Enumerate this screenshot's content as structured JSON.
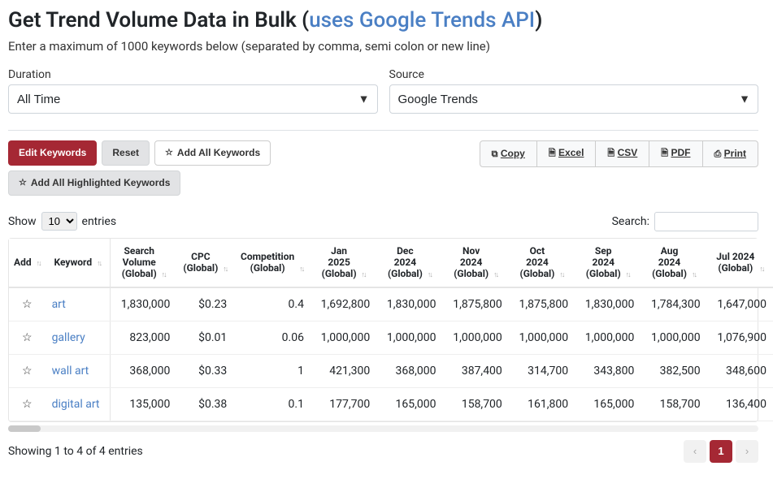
{
  "header": {
    "title_prefix": "Get Trend Volume Data in Bulk ",
    "title_link_text": "uses Google Trends API",
    "subtitle": "Enter a maximum of 1000 keywords below (separated by comma, semi colon or new line)"
  },
  "form": {
    "duration_label": "Duration",
    "duration_value": "All Time",
    "source_label": "Source",
    "source_value": "Google Trends"
  },
  "toolbar": {
    "edit": "Edit Keywords",
    "reset": "Reset",
    "add_all": "Add All Keywords",
    "add_highlighted": "Add All Highlighted Keywords",
    "export": {
      "copy": "Copy",
      "excel": "Excel",
      "csv": "CSV",
      "pdf": "PDF",
      "print": "Print"
    }
  },
  "controls": {
    "show": "Show",
    "entries": "entries",
    "entries_value": "10",
    "search_label": "Search:",
    "search_value": ""
  },
  "table": {
    "columns": [
      "Add",
      "Keyword",
      "Search Volume (Global)",
      "CPC (Global)",
      "Competition (Global)",
      "Jan 2025 (Global)",
      "Dec 2024 (Global)",
      "Nov 2024 (Global)",
      "Oct 2024 (Global)",
      "Sep 2024 (Global)",
      "Aug 2024 (Global)",
      "Jul 2024 (Global)"
    ],
    "column_breaks": [
      "Add",
      "Keyword",
      "Search\nVolume\n(Global)",
      "CPC\n(Global)",
      "Competition\n(Global)",
      "Jan\n2025\n(Global)",
      "Dec\n2024\n(Global)",
      "Nov\n2024\n(Global)",
      "Oct\n2024\n(Global)",
      "Sep\n2024\n(Global)",
      "Aug\n2024\n(Global)",
      "Jul 2024\n(Global)"
    ],
    "rows": [
      {
        "keyword": "art",
        "volume": "1,830,000",
        "cpc": "$0.23",
        "comp": "0.4",
        "m": [
          "1,692,800",
          "1,830,000",
          "1,875,800",
          "1,875,800",
          "1,830,000",
          "1,784,300",
          "1,647,000"
        ]
      },
      {
        "keyword": "gallery",
        "volume": "823,000",
        "cpc": "$0.01",
        "comp": "0.06",
        "m": [
          "1,000,000",
          "1,000,000",
          "1,000,000",
          "1,000,000",
          "1,000,000",
          "1,000,000",
          "1,076,900"
        ]
      },
      {
        "keyword": "wall art",
        "volume": "368,000",
        "cpc": "$0.33",
        "comp": "1",
        "m": [
          "421,300",
          "368,000",
          "387,400",
          "314,700",
          "343,800",
          "382,500",
          "348,600"
        ]
      },
      {
        "keyword": "digital art",
        "volume": "135,000",
        "cpc": "$0.38",
        "comp": "0.1",
        "m": [
          "177,700",
          "165,000",
          "158,700",
          "161,800",
          "165,000",
          "158,700",
          "136,400"
        ]
      }
    ]
  },
  "footer": {
    "info": "Showing 1 to 4 of 4 entries",
    "current_page": "1"
  },
  "colors": {
    "primary": "#a52834",
    "link": "#4a7fc4",
    "border": "#e5e5e5",
    "btn_secondary_bg": "#e2e3e5"
  }
}
